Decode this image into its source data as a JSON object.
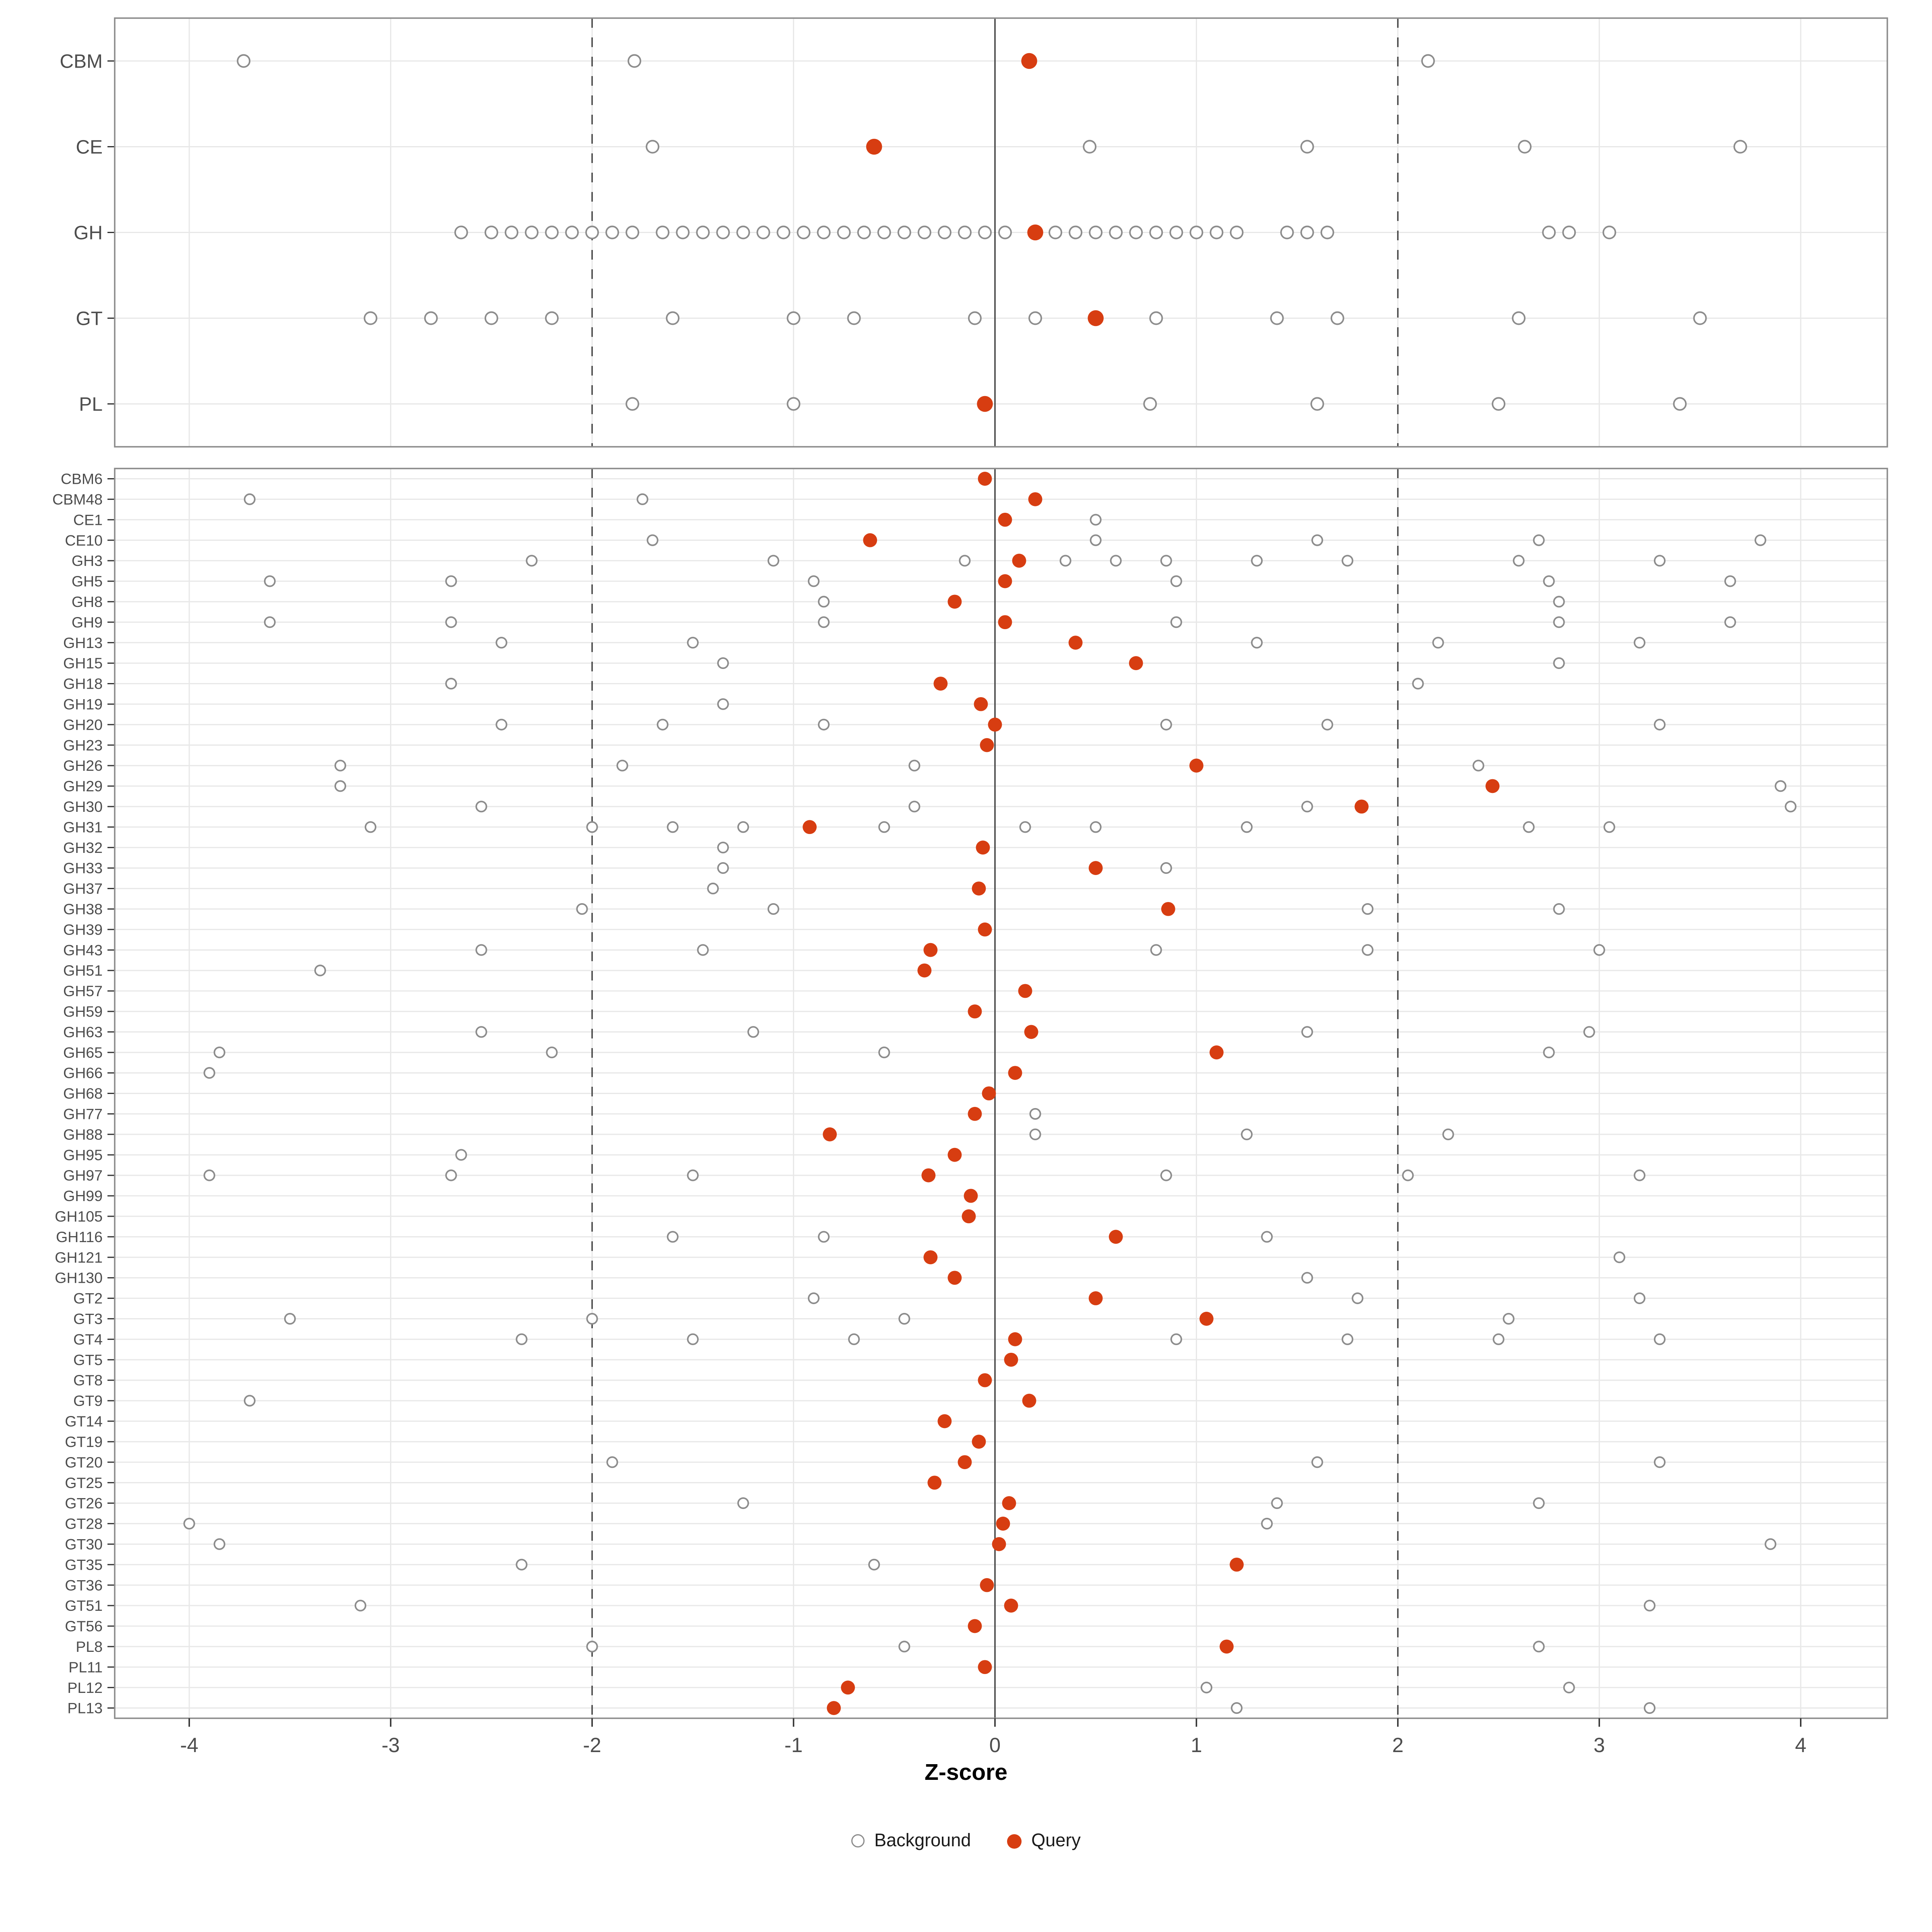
{
  "chart_data": {
    "type": "scatter",
    "title": "",
    "xlabel": "Z-score",
    "ylabel": "",
    "xlim": [
      -4.37,
      4.43
    ],
    "x_ticks": [
      -4,
      -3,
      -2,
      -1,
      0,
      1,
      2,
      3,
      4
    ],
    "grid": true,
    "legend_position": "bottom",
    "reference_lines": {
      "solid": [
        0
      ],
      "dashed": [
        -2,
        2
      ]
    },
    "legend": [
      {
        "label": "Background",
        "marker": "open-circle"
      },
      {
        "label": "Query",
        "marker": "filled-circle"
      }
    ],
    "colors": {
      "query": "#d73d11",
      "background_stroke": "#8c8c8c",
      "background_fill": "#ffffff",
      "grid": "#e8e8e8",
      "panel_border": "#8c8c8c",
      "axis_text": "#4d4d4d",
      "ref_line": "#4a4a4a"
    },
    "panels": [
      {
        "name": "classes",
        "rows": [
          {
            "label": "CBM",
            "query": 0.17,
            "background": [
              -3.73,
              -1.79,
              2.15
            ]
          },
          {
            "label": "CE",
            "query": -0.6,
            "background": [
              -1.7,
              0.47,
              1.55,
              2.63,
              3.7
            ]
          },
          {
            "label": "GH",
            "query": 0.2,
            "background": [
              -2.65,
              -2.5,
              -2.4,
              -2.3,
              -2.2,
              -2.1,
              -2.0,
              -1.9,
              -1.8,
              -1.65,
              -1.55,
              -1.45,
              -1.35,
              -1.25,
              -1.15,
              -1.05,
              -0.95,
              -0.85,
              -0.75,
              -0.65,
              -0.55,
              -0.45,
              -0.35,
              -0.25,
              -0.15,
              -0.05,
              0.05,
              0.3,
              0.4,
              0.5,
              0.6,
              0.7,
              0.8,
              0.9,
              1.0,
              1.1,
              1.2,
              1.45,
              1.55,
              1.65,
              2.75,
              2.85,
              3.05
            ]
          },
          {
            "label": "GT",
            "query": 0.5,
            "background": [
              -3.1,
              -2.8,
              -2.5,
              -2.2,
              -1.6,
              -1.0,
              -0.7,
              -0.1,
              0.2,
              0.8,
              1.4,
              1.7,
              2.6,
              3.5
            ]
          },
          {
            "label": "PL",
            "query": -0.05,
            "background": [
              -1.8,
              -1.0,
              0.77,
              1.6,
              2.5,
              3.4
            ]
          }
        ]
      },
      {
        "name": "families",
        "rows": [
          {
            "label": "CBM6",
            "query": -0.05,
            "background": []
          },
          {
            "label": "CBM48",
            "query": 0.2,
            "background": [
              -3.7,
              -1.75
            ]
          },
          {
            "label": "CE1",
            "query": 0.05,
            "background": [
              0.5
            ]
          },
          {
            "label": "CE10",
            "query": -0.62,
            "background": [
              -1.7,
              0.5,
              1.6,
              2.7,
              3.8
            ]
          },
          {
            "label": "GH3",
            "query": 0.12,
            "background": [
              -2.3,
              -1.1,
              -0.15,
              0.35,
              0.6,
              0.85,
              1.3,
              1.75,
              2.6,
              3.3
            ]
          },
          {
            "label": "GH5",
            "query": 0.05,
            "background": [
              -3.6,
              -2.7,
              -0.9,
              0.9,
              2.75,
              3.65
            ]
          },
          {
            "label": "GH8",
            "query": -0.2,
            "background": [
              -0.85,
              2.8
            ]
          },
          {
            "label": "GH9",
            "query": 0.05,
            "background": [
              -3.6,
              -2.7,
              -0.85,
              0.9,
              2.8,
              3.65
            ]
          },
          {
            "label": "GH13",
            "query": 0.4,
            "background": [
              -2.45,
              -1.5,
              1.3,
              2.2,
              3.2
            ]
          },
          {
            "label": "GH15",
            "query": 0.7,
            "background": [
              -1.35,
              2.8
            ]
          },
          {
            "label": "GH18",
            "query": -0.27,
            "background": [
              -2.7,
              2.1
            ]
          },
          {
            "label": "GH19",
            "query": -0.07,
            "background": [
              -1.35
            ]
          },
          {
            "label": "GH20",
            "query": 0.0,
            "background": [
              -2.45,
              -1.65,
              -0.85,
              0.85,
              1.65,
              3.3
            ]
          },
          {
            "label": "GH23",
            "query": -0.04,
            "background": []
          },
          {
            "label": "GH26",
            "query": 1.0,
            "background": [
              -3.25,
              -1.85,
              -0.4,
              2.4
            ]
          },
          {
            "label": "GH29",
            "query": 2.47,
            "background": [
              -3.25,
              3.9
            ]
          },
          {
            "label": "GH30",
            "query": 1.82,
            "background": [
              -2.55,
              -0.4,
              1.55,
              3.95
            ]
          },
          {
            "label": "GH31",
            "query": -0.92,
            "background": [
              -3.1,
              -2.0,
              -1.6,
              -1.25,
              -0.55,
              0.15,
              0.5,
              1.25,
              2.65,
              3.05
            ]
          },
          {
            "label": "GH32",
            "query": -0.06,
            "background": [
              -1.35
            ]
          },
          {
            "label": "GH33",
            "query": 0.5,
            "background": [
              -1.35,
              0.85
            ]
          },
          {
            "label": "GH37",
            "query": -0.08,
            "background": [
              -1.4
            ]
          },
          {
            "label": "GH38",
            "query": 0.86,
            "background": [
              -2.05,
              -1.1,
              1.85,
              2.8
            ]
          },
          {
            "label": "GH39",
            "query": -0.05,
            "background": []
          },
          {
            "label": "GH43",
            "query": -0.32,
            "background": [
              -2.55,
              -1.45,
              0.8,
              1.85,
              3.0
            ]
          },
          {
            "label": "GH51",
            "query": -0.35,
            "background": [
              -3.35
            ]
          },
          {
            "label": "GH57",
            "query": 0.15,
            "background": []
          },
          {
            "label": "GH59",
            "query": -0.1,
            "background": []
          },
          {
            "label": "GH63",
            "query": 0.18,
            "background": [
              -2.55,
              -1.2,
              1.55,
              2.95
            ]
          },
          {
            "label": "GH65",
            "query": 1.1,
            "background": [
              -3.85,
              -2.2,
              -0.55,
              2.75
            ]
          },
          {
            "label": "GH66",
            "query": 0.1,
            "background": [
              -3.9
            ]
          },
          {
            "label": "GH68",
            "query": -0.03,
            "background": []
          },
          {
            "label": "GH77",
            "query": -0.1,
            "background": [
              0.2
            ]
          },
          {
            "label": "GH88",
            "query": -0.82,
            "background": [
              0.2,
              1.25,
              2.25
            ]
          },
          {
            "label": "GH95",
            "query": -0.2,
            "background": [
              -2.65
            ]
          },
          {
            "label": "GH97",
            "query": -0.33,
            "background": [
              -3.9,
              -2.7,
              -1.5,
              0.85,
              2.05,
              3.2
            ]
          },
          {
            "label": "GH99",
            "query": -0.12,
            "background": []
          },
          {
            "label": "GH105",
            "query": -0.13,
            "background": []
          },
          {
            "label": "GH116",
            "query": 0.6,
            "background": [
              -1.6,
              -0.85,
              1.35
            ]
          },
          {
            "label": "GH121",
            "query": -0.32,
            "background": [
              3.1
            ]
          },
          {
            "label": "GH130",
            "query": -0.2,
            "background": [
              1.55
            ]
          },
          {
            "label": "GT2",
            "query": 0.5,
            "background": [
              -0.9,
              1.8,
              3.2
            ]
          },
          {
            "label": "GT3",
            "query": 1.05,
            "background": [
              -3.5,
              -2.0,
              -0.45,
              2.55
            ]
          },
          {
            "label": "GT4",
            "query": 0.1,
            "background": [
              -2.35,
              -1.5,
              -0.7,
              0.9,
              1.75,
              2.5,
              3.3
            ]
          },
          {
            "label": "GT5",
            "query": 0.08,
            "background": []
          },
          {
            "label": "GT8",
            "query": -0.05,
            "background": []
          },
          {
            "label": "GT9",
            "query": 0.17,
            "background": [
              -3.7
            ]
          },
          {
            "label": "GT14",
            "query": -0.25,
            "background": []
          },
          {
            "label": "GT19",
            "query": -0.08,
            "background": []
          },
          {
            "label": "GT20",
            "query": -0.15,
            "background": [
              -1.9,
              1.6,
              3.3
            ]
          },
          {
            "label": "GT25",
            "query": -0.3,
            "background": []
          },
          {
            "label": "GT26",
            "query": 0.07,
            "background": [
              -1.25,
              1.4,
              2.7
            ]
          },
          {
            "label": "GT28",
            "query": 0.04,
            "background": [
              -4.0,
              1.35
            ]
          },
          {
            "label": "GT30",
            "query": 0.02,
            "background": [
              -3.85,
              3.85
            ]
          },
          {
            "label": "GT35",
            "query": 1.2,
            "background": [
              -2.35,
              -0.6
            ]
          },
          {
            "label": "GT36",
            "query": -0.04,
            "background": []
          },
          {
            "label": "GT51",
            "query": 0.08,
            "background": [
              -3.15,
              3.25
            ]
          },
          {
            "label": "GT56",
            "query": -0.1,
            "background": []
          },
          {
            "label": "PL8",
            "query": 1.15,
            "background": [
              -2.0,
              -0.45,
              2.7
            ]
          },
          {
            "label": "PL11",
            "query": -0.05,
            "background": []
          },
          {
            "label": "PL12",
            "query": -0.73,
            "background": [
              1.05,
              2.85
            ]
          },
          {
            "label": "PL13",
            "query": -0.8,
            "background": [
              1.2,
              3.25
            ]
          }
        ]
      }
    ]
  }
}
